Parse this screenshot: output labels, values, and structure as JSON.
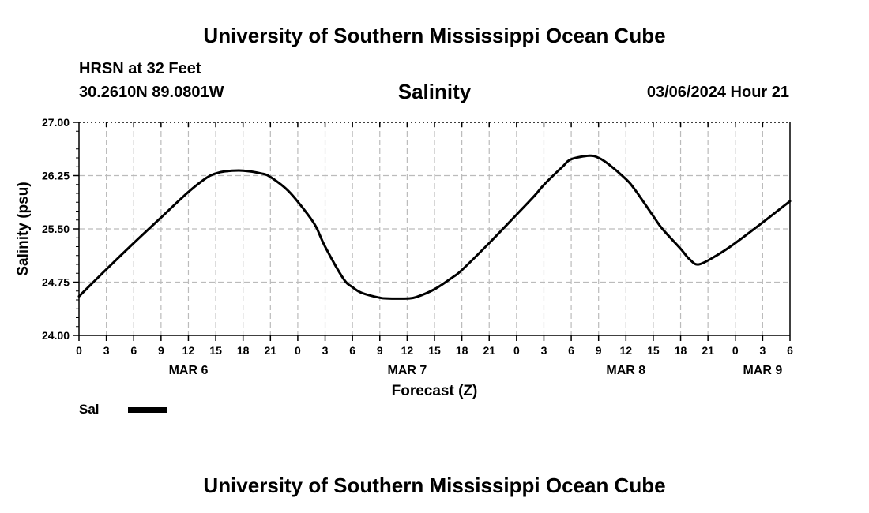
{
  "header": {
    "banner": "University of Southern Mississippi Ocean Cube",
    "station": "HRSN at 32 Feet",
    "coordinates": "30.2610N  89.0801W",
    "parameter": "Salinity",
    "timestamp": "03/06/2024 Hour 21"
  },
  "legend": {
    "label": "Sal"
  },
  "footer": {
    "banner": "University of Southern Mississippi Ocean Cube"
  },
  "colors": {
    "line": "#000000",
    "grid": "#bbbbbb",
    "background": "#ffffff"
  },
  "chart_data": {
    "type": "line",
    "title": "Salinity",
    "xlabel": "Forecast (Z)",
    "ylabel": "Salinity (psu)",
    "ylim": [
      24.0,
      27.0
    ],
    "yticks": [
      "24.00",
      "24.75",
      "25.50",
      "26.25",
      "27.00"
    ],
    "xlim": [
      0,
      78
    ],
    "xtick_labels": [
      "0",
      "3",
      "6",
      "9",
      "12",
      "15",
      "18",
      "21",
      "0",
      "3",
      "6",
      "9",
      "12",
      "15",
      "18",
      "21",
      "0",
      "3",
      "6",
      "9",
      "12",
      "15",
      "18",
      "21",
      "0",
      "3",
      "6"
    ],
    "day_labels": [
      {
        "hour": 12,
        "label": "MAR 6"
      },
      {
        "hour": 36,
        "label": "MAR 7"
      },
      {
        "hour": 60,
        "label": "MAR 8"
      },
      {
        "hour": 75,
        "label": "MAR 9"
      }
    ],
    "grid": true,
    "series": [
      {
        "name": "Sal",
        "x": [
          0,
          3,
          6,
          9,
          12,
          14,
          15,
          16,
          18,
          20,
          21,
          23,
          25,
          26,
          27,
          29,
          30,
          31,
          33,
          34,
          36,
          37,
          39,
          41,
          42,
          45,
          48,
          50,
          51,
          53,
          54,
          56,
          57,
          58,
          60,
          61,
          63,
          64,
          66,
          67,
          68,
          70,
          72,
          75,
          78
        ],
        "y": [
          24.55,
          24.93,
          25.3,
          25.66,
          26.02,
          26.22,
          26.28,
          26.31,
          26.32,
          26.28,
          26.23,
          26.03,
          25.72,
          25.53,
          25.25,
          24.8,
          24.68,
          24.6,
          24.53,
          24.52,
          24.52,
          24.54,
          24.65,
          24.82,
          24.92,
          25.3,
          25.7,
          25.97,
          26.12,
          26.37,
          26.48,
          26.53,
          26.5,
          26.42,
          26.2,
          26.05,
          25.68,
          25.5,
          25.22,
          25.07,
          25.0,
          25.13,
          25.3,
          25.59,
          25.89
        ]
      }
    ]
  }
}
